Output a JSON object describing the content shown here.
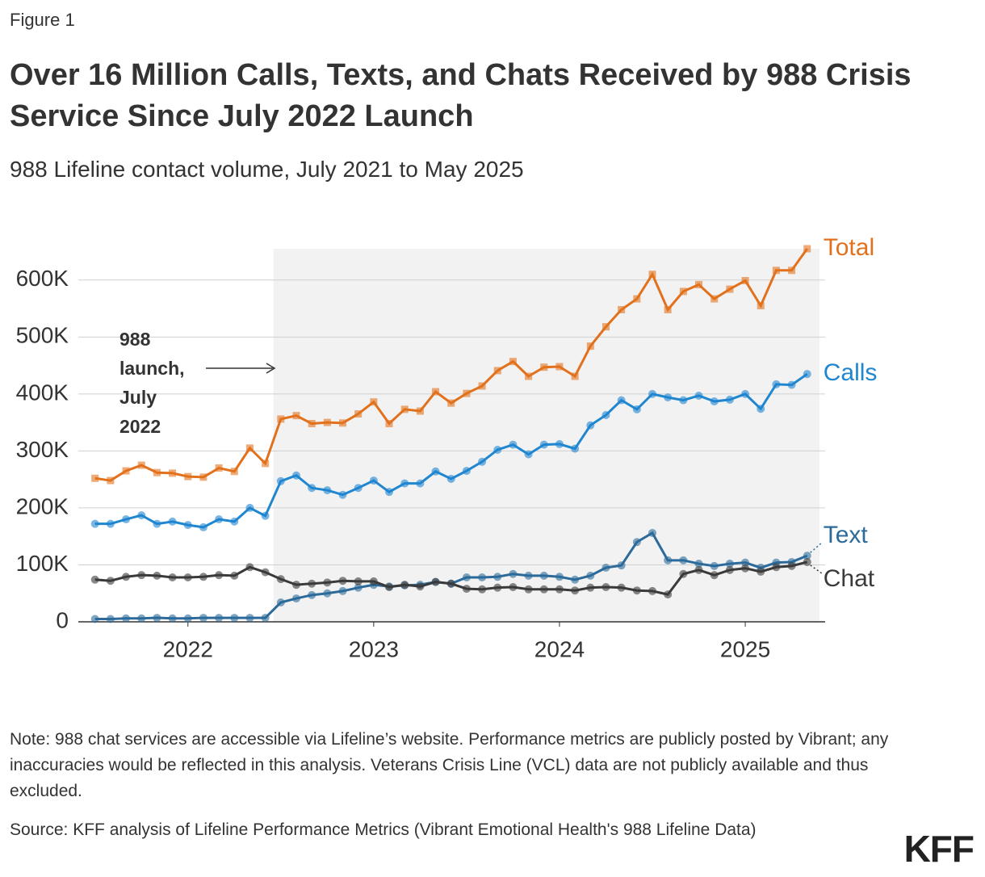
{
  "chart_data": {
    "type": "line",
    "figure_label": "Figure 1",
    "title": "Over 16 Million Calls, Texts, and Chats Received by 988 Crisis Service Since July 2022 Launch",
    "subtitle": "988 Lifeline contact volume, July 2021 to May 2025",
    "annotation": [
      "988",
      "launch,",
      "July",
      "2022"
    ],
    "note": "Note: 988 chat services are accessible via Lifeline’s website. Performance metrics are publicly posted by Vibrant; any inaccuracies would be reflected in this analysis. Veterans Crisis Line (VCL) data are not publicly available and thus excluded.",
    "source": "Source: KFF analysis of Lifeline Performance Metrics (Vibrant Emotional Health's 988 Lifeline Data)",
    "logo": "KFF",
    "x": [
      2021.5,
      2021.5833,
      2021.6667,
      2021.75,
      2021.8333,
      2021.9167,
      2022.0,
      2022.0833,
      2022.1667,
      2022.25,
      2022.3333,
      2022.4167,
      2022.5,
      2022.5833,
      2022.6667,
      2022.75,
      2022.8333,
      2022.9167,
      2023.0,
      2023.0833,
      2023.1667,
      2023.25,
      2023.3333,
      2023.4167,
      2023.5,
      2023.5833,
      2023.6667,
      2023.75,
      2023.8333,
      2023.9167,
      2024.0,
      2024.0833,
      2024.1667,
      2024.25,
      2024.3333,
      2024.4167,
      2024.5,
      2024.5833,
      2024.6667,
      2024.75,
      2024.8333,
      2024.9167,
      2025.0,
      2025.0833,
      2025.1667,
      2025.25,
      2025.3333
    ],
    "xlim": [
      2021.41,
      2025.43
    ],
    "xticks": [
      2022,
      2023,
      2024,
      2025
    ],
    "ylim": [
      0,
      655000
    ],
    "yticks": [
      0,
      {
        "value": 100000,
        "label": "100K"
      },
      {
        "value": 200000,
        "label": "200K"
      },
      {
        "value": 300000,
        "label": "300K"
      },
      {
        "value": 400000,
        "label": "400K"
      },
      {
        "value": 500000,
        "label": "500K"
      },
      {
        "value": 600000,
        "label": "600K"
      }
    ],
    "grid": true,
    "shade_xlim": [
      2022.46,
      2025.4
    ],
    "series": [
      {
        "name": "Total",
        "color": "#e2711d",
        "marker": "square",
        "values": [
          252000,
          248000,
          265000,
          275000,
          262000,
          261000,
          255000,
          254000,
          270000,
          264000,
          305000,
          278000,
          356000,
          362000,
          348000,
          350000,
          349000,
          365000,
          386000,
          348000,
          373000,
          370000,
          404000,
          384000,
          401000,
          414000,
          441000,
          457000,
          431000,
          447000,
          448000,
          431000,
          484000,
          518000,
          548000,
          567000,
          610000,
          548000,
          580000,
          592000,
          567000,
          584000,
          599000,
          555000,
          617000,
          617000,
          655000
        ]
      },
      {
        "name": "Calls",
        "color": "#1f86d0",
        "marker": "circle",
        "values": [
          172000,
          172000,
          180000,
          187000,
          172000,
          176000,
          170000,
          166000,
          180000,
          176000,
          200000,
          186000,
          247000,
          257000,
          235000,
          231000,
          223000,
          235000,
          248000,
          228000,
          243000,
          243000,
          264000,
          251000,
          265000,
          281000,
          302000,
          311000,
          294000,
          311000,
          312000,
          304000,
          345000,
          363000,
          389000,
          373000,
          400000,
          394000,
          389000,
          397000,
          387000,
          390000,
          400000,
          374000,
          417000,
          416000,
          435000
        ]
      },
      {
        "name": "Text",
        "color": "#2b6a9a",
        "marker": "circle",
        "values": [
          5000,
          5000,
          6000,
          6000,
          7000,
          6000,
          6000,
          7000,
          7000,
          7000,
          7000,
          7000,
          34000,
          41000,
          47000,
          50000,
          54000,
          60000,
          65000,
          62000,
          64000,
          65000,
          70000,
          67000,
          78000,
          78000,
          79000,
          84000,
          81000,
          81000,
          79000,
          74000,
          81000,
          95000,
          99000,
          140000,
          156000,
          108000,
          108000,
          102000,
          98000,
          102000,
          104000,
          95000,
          104000,
          105000,
          116000
        ]
      },
      {
        "name": "Chat",
        "color": "#3a3a3a",
        "marker": "circle",
        "values": [
          74000,
          72000,
          79000,
          82000,
          81000,
          78000,
          78000,
          79000,
          82000,
          81000,
          96000,
          87000,
          75000,
          65000,
          67000,
          69000,
          72000,
          71000,
          71000,
          61000,
          65000,
          62000,
          70000,
          67000,
          58000,
          57000,
          60000,
          61000,
          57000,
          57000,
          57000,
          55000,
          60000,
          61000,
          60000,
          55000,
          54000,
          48000,
          84000,
          91000,
          82000,
          91000,
          94000,
          88000,
          96000,
          98000,
          105000
        ]
      }
    ]
  }
}
